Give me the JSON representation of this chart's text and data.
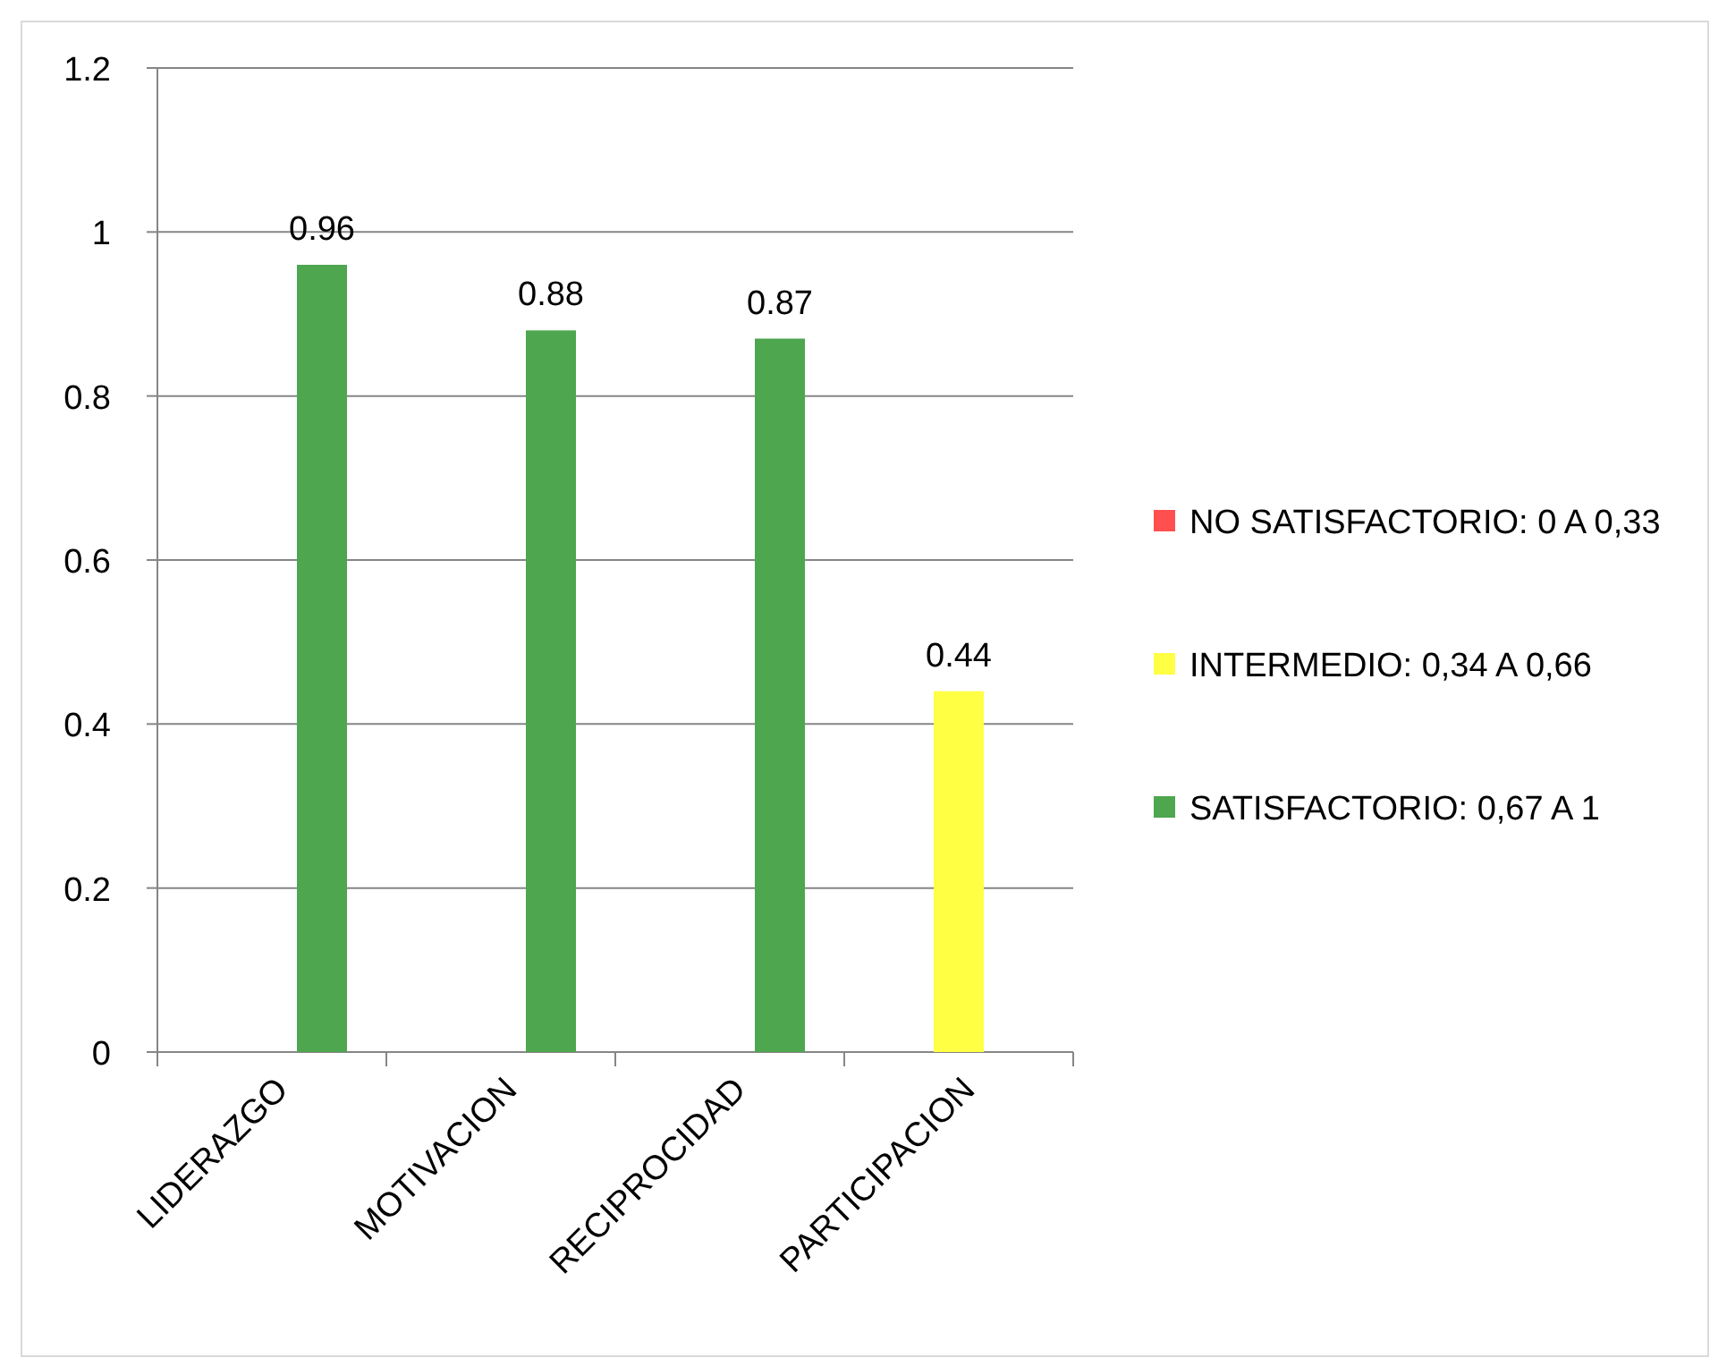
{
  "chart_data": {
    "type": "bar",
    "categories": [
      "LIDERAZGO",
      "MOTIVACION",
      "RECIPROCIDAD",
      "PARTICIPACION"
    ],
    "series": [
      {
        "name": "NO SATISFACTORIO: 0 A 0,33",
        "color": "#ff4f4f",
        "values": [
          null,
          null,
          null,
          null
        ]
      },
      {
        "name": "INTERMEDIO: 0,34 A 0,66",
        "color": "#ffff44",
        "values": [
          null,
          null,
          null,
          0.44
        ]
      },
      {
        "name": "SATISFACTORIO: 0,67 A 1",
        "color": "#4ea64e",
        "values": [
          0.96,
          0.88,
          0.87,
          null
        ]
      }
    ],
    "ylim": [
      0,
      1.2
    ],
    "yticks": [
      0,
      0.2,
      0.4,
      0.6,
      0.8,
      1,
      1.2
    ],
    "grid": "y",
    "legend": "right",
    "data_labels": true
  }
}
